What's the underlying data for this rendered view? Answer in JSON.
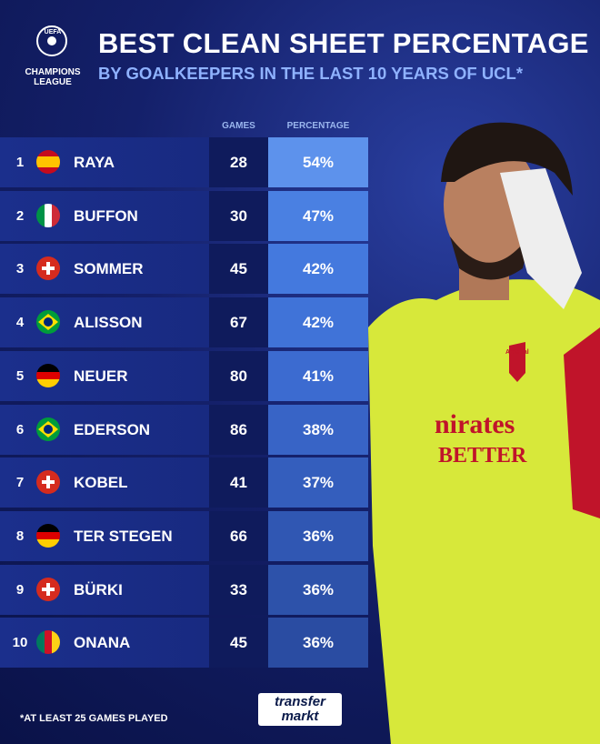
{
  "header": {
    "logo_top": "UEFA",
    "logo_line1": "CHAMPIONS",
    "logo_line2": "LEAGUE",
    "title": "BEST CLEAN SHEET PERCENTAGE",
    "subtitle": "BY GOALKEEPERS IN THE LAST 10 YEARS OF UCL*"
  },
  "table": {
    "columns": [
      "GAMES",
      "PERCENTAGE"
    ],
    "rows": [
      [
        "1",
        "RAYA",
        "28",
        "54%"
      ],
      [
        "2",
        "BUFFON",
        "30",
        "47%"
      ],
      [
        "3",
        "SOMMER",
        "45",
        "42%"
      ],
      [
        "4",
        "ALISSON",
        "67",
        "42%"
      ],
      [
        "5",
        "NEUER",
        "80",
        "41%"
      ],
      [
        "6",
        "EDERSON",
        "86",
        "38%"
      ],
      [
        "7",
        "KOBEL",
        "41",
        "37%"
      ],
      [
        "8",
        "TER STEGEN",
        "66",
        "36%"
      ],
      [
        "9",
        "BÜRKI",
        "33",
        "36%"
      ],
      [
        "10",
        "ONANA",
        "45",
        "36%"
      ]
    ]
  },
  "photo": {
    "crest": "Arsenal",
    "sponsor_line1": "nirates",
    "sponsor_line2": "BETTER"
  },
  "footer": {
    "note": "*AT LEAST 25 GAMES PLAYED",
    "brand_line1": "transfer",
    "brand_line2": "markt"
  }
}
